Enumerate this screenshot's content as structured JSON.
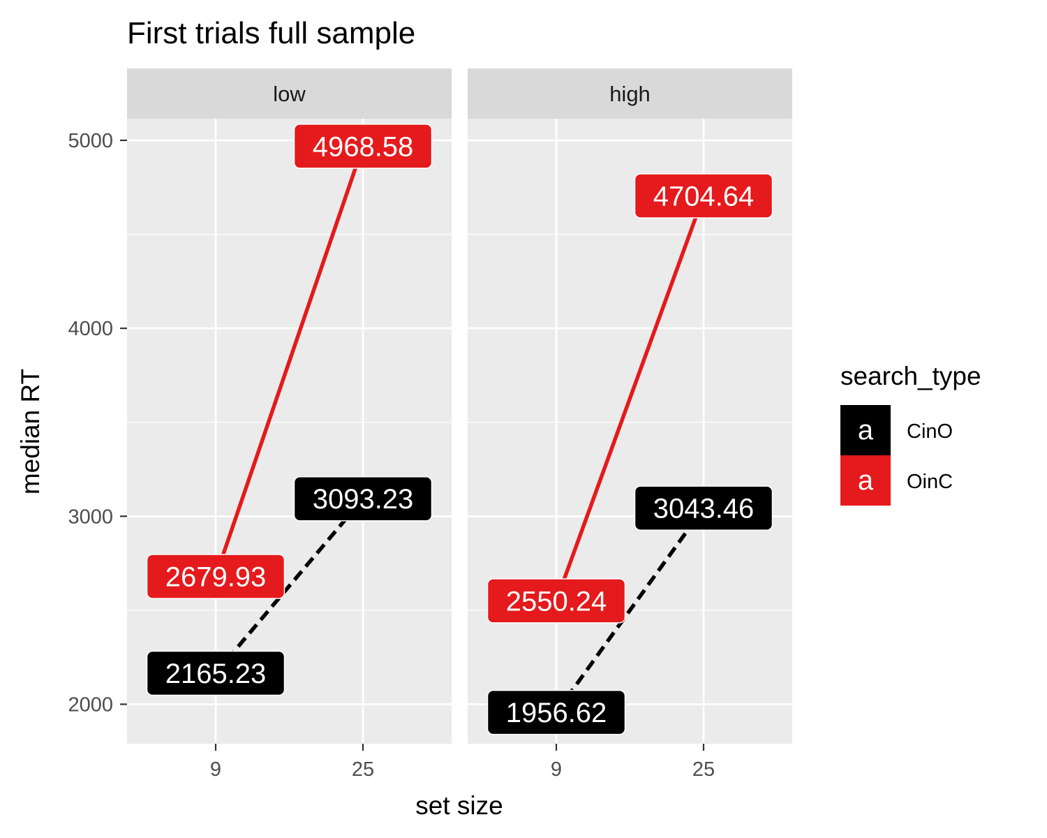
{
  "chart_data": {
    "type": "line",
    "title": "First trials full sample",
    "xlabel": "set size",
    "ylabel": "median RT",
    "x_categories": [
      "9",
      "25"
    ],
    "y_ticks": [
      2000,
      3000,
      4000,
      5000
    ],
    "ylim": [
      1790,
      5115
    ],
    "grid": true,
    "legend_position": "right",
    "legend": {
      "title": "search_type",
      "key_glyph": "a",
      "entries": [
        {
          "name": "CinO",
          "color": "#000000",
          "linetype": "dashed"
        },
        {
          "name": "OinC",
          "color": "#e41a1c",
          "linetype": "solid"
        }
      ]
    },
    "panels": [
      {
        "label": "low",
        "series": [
          {
            "name": "CinO",
            "values": [
              2165.23,
              3093.23
            ],
            "labels": [
              "2165.23",
              "3093.23"
            ]
          },
          {
            "name": "OinC",
            "values": [
              2679.93,
              4968.58
            ],
            "labels": [
              "2679.93",
              "4968.58"
            ]
          }
        ]
      },
      {
        "label": "high",
        "series": [
          {
            "name": "CinO",
            "values": [
              1956.62,
              3043.46
            ],
            "labels": [
              "1956.62",
              "3043.46"
            ]
          },
          {
            "name": "OinC",
            "values": [
              2550.24,
              4704.64
            ],
            "labels": [
              "2550.24",
              "4704.64"
            ]
          }
        ]
      }
    ]
  }
}
